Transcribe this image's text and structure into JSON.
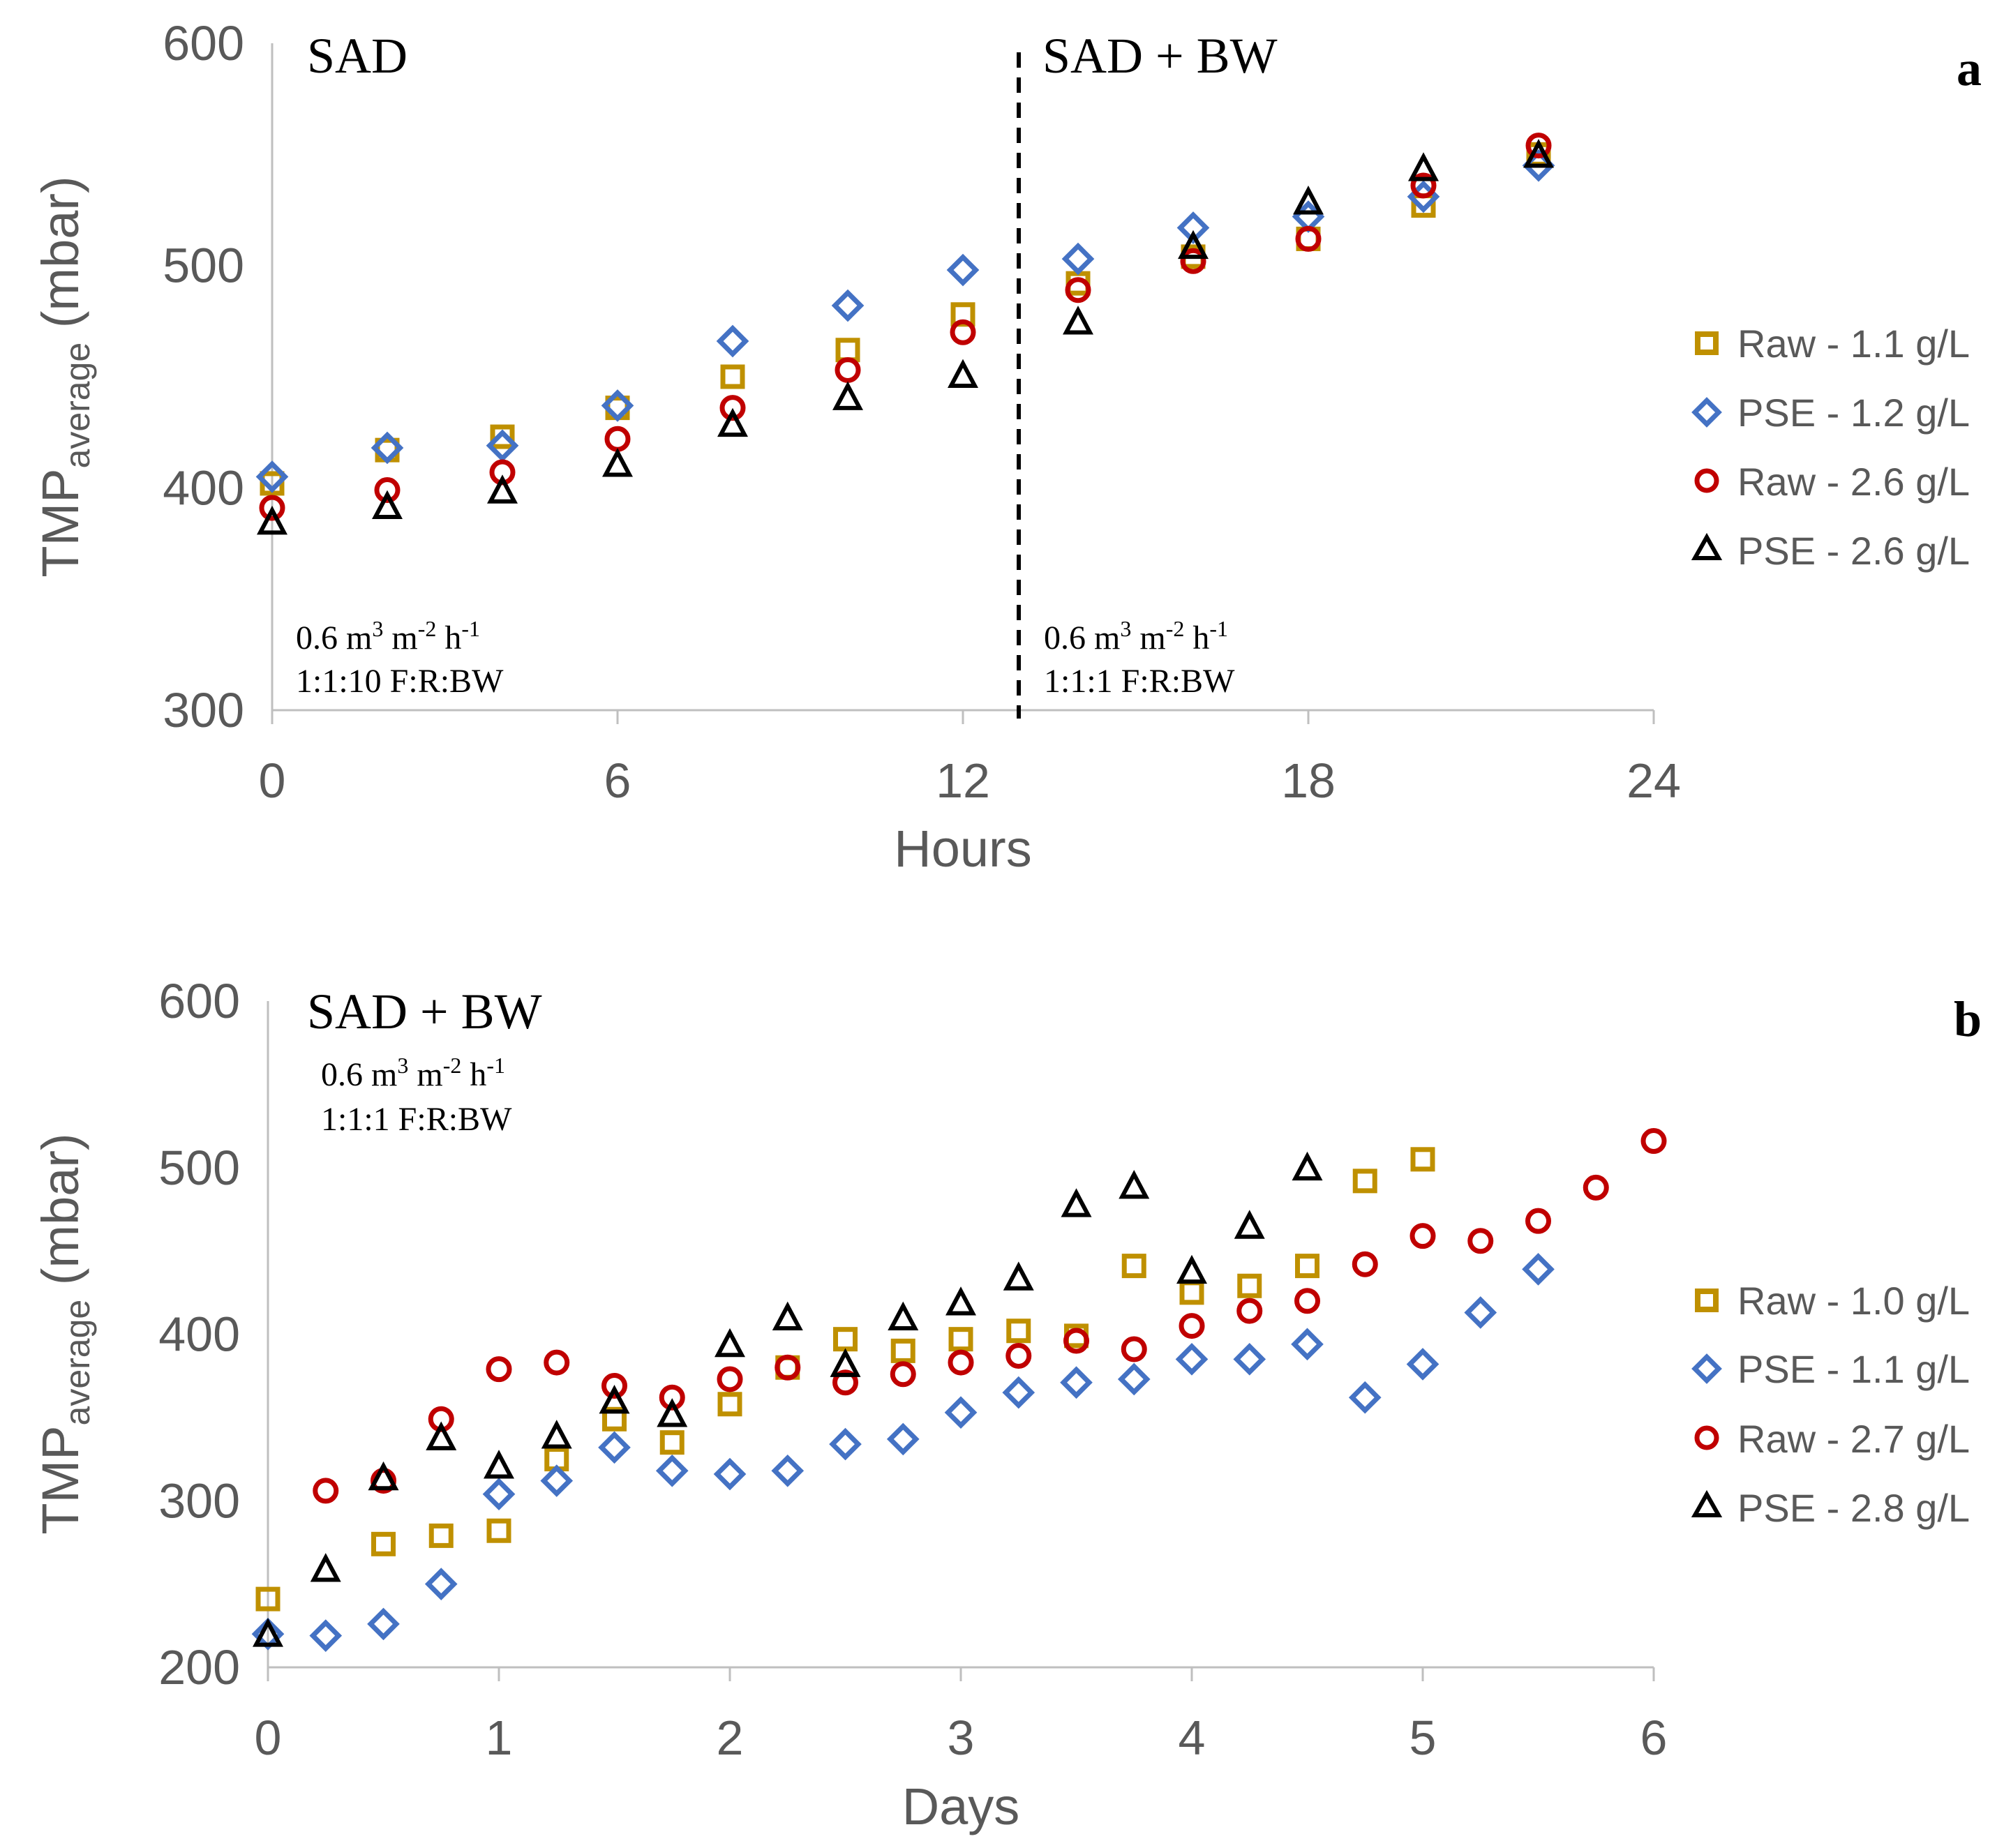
{
  "chart_data": [
    {
      "type": "scatter",
      "panel_label": "a",
      "xlabel": "Hours",
      "ylabel": {
        "main": "TMP",
        "subscript": "average",
        "unit": " (mbar)"
      },
      "xlim": [
        0,
        24
      ],
      "ylim": [
        300,
        600
      ],
      "xticks": [
        0,
        6,
        12,
        18,
        24
      ],
      "yticks": [
        300,
        400,
        500,
        600
      ],
      "grid": false,
      "legend_position": "right",
      "divider_x": 13,
      "annotations": {
        "left_phase": "SAD",
        "right_phase": "SAD + BW",
        "left_cond_line1": {
          "a": "0.6 m",
          "b": "3",
          "c": " m",
          "d": "-2",
          "e": " h",
          "f": "-1"
        },
        "left_cond_line2": "1:1:10  F:R:BW",
        "right_cond_line1": {
          "a": "0.6 m",
          "b": "3",
          "c": " m",
          "d": "-2",
          "e": " h",
          "f": "-1"
        },
        "right_cond_line2": "1:1:1  F:R:BW"
      },
      "series": [
        {
          "name": "Raw - 1.1 g/L",
          "marker": "square",
          "color": "#BF9000",
          "x": [
            0,
            2,
            4,
            6,
            8,
            10,
            12,
            14,
            16,
            18,
            20,
            22
          ],
          "y": [
            402,
            417,
            423,
            436,
            450,
            462,
            478,
            492,
            504,
            512,
            527,
            550
          ]
        },
        {
          "name": "PSE - 1.2 g/L",
          "marker": "diamond",
          "color": "#4472C4",
          "x": [
            0,
            2,
            4,
            6,
            8,
            10,
            12,
            14,
            16,
            18,
            20,
            22
          ],
          "y": [
            405,
            418,
            419,
            437,
            466,
            482,
            498,
            503,
            517,
            522,
            531,
            545
          ]
        },
        {
          "name": "Raw - 2.6 g/L",
          "marker": "circle",
          "color": "#C00000",
          "x": [
            0,
            2,
            4,
            6,
            8,
            10,
            12,
            14,
            16,
            18,
            20,
            22
          ],
          "y": [
            391,
            399,
            407,
            422,
            436,
            453,
            470,
            489,
            502,
            512,
            536,
            554
          ]
        },
        {
          "name": "PSE - 2.6 g/L",
          "marker": "triangle",
          "color": "#000000",
          "x": [
            0,
            2,
            4,
            6,
            8,
            10,
            12,
            14,
            16,
            18,
            20,
            22
          ],
          "y": [
            384,
            391,
            398,
            410,
            428,
            440,
            450,
            474,
            508,
            528,
            543,
            549
          ]
        }
      ]
    },
    {
      "type": "scatter",
      "panel_label": "b",
      "xlabel": "Days",
      "ylabel": {
        "main": "TMP",
        "subscript": "average",
        "unit": " (mbar)"
      },
      "xlim": [
        0,
        6
      ],
      "ylim": [
        200,
        600
      ],
      "xticks": [
        0,
        1,
        2,
        3,
        4,
        5,
        6
      ],
      "yticks": [
        200,
        300,
        400,
        500,
        600
      ],
      "grid": false,
      "legend_position": "right",
      "annotations": {
        "phase": "SAD + BW",
        "cond_line1": {
          "a": "0.6 m",
          "b": "3",
          "c": " m",
          "d": "-2",
          "e": " h",
          "f": "-1"
        },
        "cond_line2": "1:1:1  F:R:BW"
      },
      "series": [
        {
          "name": "Raw - 1.0 g/L",
          "marker": "square",
          "color": "#BF9000",
          "x": [
            0,
            0.5,
            0.75,
            1,
            1.25,
            1.5,
            1.75,
            2,
            2.25,
            2.5,
            2.75,
            3,
            3.25,
            3.5,
            3.75,
            4,
            4.25,
            4.5,
            4.75,
            5
          ],
          "y": [
            241,
            274,
            279,
            282,
            325,
            349,
            335,
            358,
            380,
            397,
            390,
            397,
            402,
            399,
            441,
            425,
            429,
            441,
            492,
            505
          ]
        },
        {
          "name": "PSE - 1.1 g/L",
          "marker": "diamond",
          "color": "#4472C4",
          "x": [
            0,
            0.25,
            0.5,
            0.75,
            1,
            1.25,
            1.5,
            1.75,
            2,
            2.25,
            2.5,
            2.75,
            3,
            3.25,
            3.5,
            3.75,
            4,
            4.25,
            4.5,
            4.75,
            5,
            5.25,
            5.5
          ],
          "y": [
            220,
            219,
            226,
            250,
            304,
            312,
            332,
            318,
            316,
            318,
            334,
            337,
            353,
            365,
            371,
            373,
            385,
            385,
            394,
            362,
            382,
            413,
            439
          ]
        },
        {
          "name": "Raw - 2.7 g/L",
          "marker": "circle",
          "color": "#C00000",
          "x": [
            0.25,
            0.5,
            0.75,
            1,
            1.25,
            1.5,
            1.75,
            2,
            2.25,
            2.5,
            2.75,
            3,
            3.25,
            3.5,
            3.75,
            4,
            4.25,
            4.5,
            4.75,
            5,
            5.25,
            5.5,
            5.75,
            6
          ],
          "y": [
            306,
            312,
            349,
            379,
            383,
            369,
            362,
            373,
            380,
            371,
            376,
            383,
            387,
            396,
            391,
            405,
            414,
            420,
            442,
            459,
            456,
            468,
            488,
            516
          ]
        },
        {
          "name": "PSE - 2.8 g/L",
          "marker": "triangle",
          "color": "#000000",
          "x": [
            0,
            0.25,
            0.5,
            0.75,
            1,
            1.25,
            1.5,
            1.75,
            2,
            2.25,
            2.5,
            2.75,
            3,
            3.25,
            3.5,
            3.75,
            4,
            4.25,
            4.5
          ],
          "y": [
            219,
            258,
            313,
            337,
            320,
            338,
            359,
            351,
            393,
            409,
            381,
            409,
            418,
            433,
            477,
            488,
            437,
            464,
            499
          ]
        }
      ]
    }
  ]
}
